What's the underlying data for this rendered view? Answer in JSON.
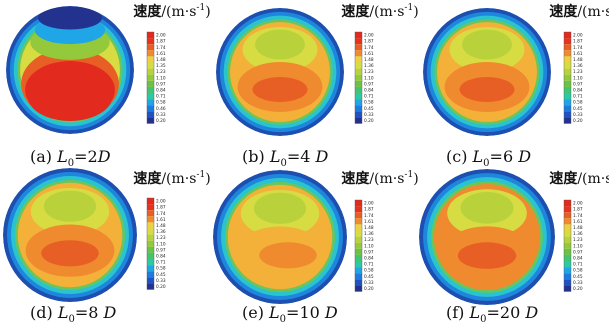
{
  "figure": {
    "unit_cn": "速度",
    "unit": "/(m·s",
    "unit_exp": "-1",
    "unit_close": ")"
  },
  "colors": {
    "scale": [
      "#24328f",
      "#1f52c2",
      "#1e7be0",
      "#1ea6e6",
      "#20c3d3",
      "#2cc9a6",
      "#45c46f",
      "#6bc245",
      "#93c93a",
      "#b9d23c",
      "#d8dc43",
      "#ecd242",
      "#f3b13a",
      "#f08a2e",
      "#e85f25",
      "#e63320",
      "#e22a1f"
    ],
    "outer_ring": [
      "#1d4fb0",
      "#1f86de",
      "#2ac4cf",
      "#6cc55a"
    ]
  },
  "chart_data": [
    {
      "type": "heatmap",
      "caption": "(a) L0=2D",
      "caption_parts": {
        "prefix": "(a) ",
        "var": "L",
        "sub": "0",
        "suffix": "=2",
        "unit": "D"
      },
      "colorbar_ticks": [
        "2.00",
        "1.87",
        "1.74",
        "1.61",
        "1.48",
        "1.35",
        "1.23",
        "1.10",
        "0.97",
        "0.84",
        "0.71",
        "0.58",
        "0.46",
        "0.33",
        "0.20"
      ],
      "peak_velocity_level": 2.0,
      "inner_level": 1.55
    },
    {
      "type": "heatmap",
      "caption": "(b) L0=4 D",
      "caption_parts": {
        "prefix": "(b) ",
        "var": "L",
        "sub": "0",
        "suffix": "=4 ",
        "unit": "D"
      },
      "colorbar_ticks": [
        "2.00",
        "1.87",
        "1.74",
        "1.61",
        "1.48",
        "1.36",
        "1.23",
        "1.10",
        "0.97",
        "0.84",
        "0.71",
        "0.58",
        "0.45",
        "0.33",
        "0.20"
      ],
      "peak_velocity_level": 1.82,
      "inner_level": 1.5
    },
    {
      "type": "heatmap",
      "caption": "(c) L0=6 D",
      "caption_parts": {
        "prefix": "(c) ",
        "var": "L",
        "sub": "0",
        "suffix": "=6 ",
        "unit": "D"
      },
      "colorbar_ticks": [
        "2.00",
        "1.87",
        "1.74",
        "1.61",
        "1.48",
        "1.36",
        "1.23",
        "1.10",
        "0.97",
        "0.84",
        "0.71",
        "0.58",
        "0.45",
        "0.33",
        "0.20"
      ],
      "peak_velocity_level": 1.75,
      "inner_level": 1.55
    },
    {
      "type": "heatmap",
      "caption": "(d) L0=8 D",
      "caption_parts": {
        "prefix": "(d) ",
        "var": "L",
        "sub": "0",
        "suffix": "=8 ",
        "unit": "D"
      },
      "colorbar_ticks": [
        "2.00",
        "1.87",
        "1.74",
        "1.61",
        "1.48",
        "1.36",
        "1.23",
        "1.10",
        "0.97",
        "0.84",
        "0.71",
        "0.58",
        "0.45",
        "0.33",
        "0.20"
      ],
      "peak_velocity_level": 1.82,
      "inner_level": 1.55
    },
    {
      "type": "heatmap",
      "caption": "(e) L0=10 D",
      "caption_parts": {
        "prefix": "(e) ",
        "var": "L",
        "sub": "0",
        "suffix": "=10 ",
        "unit": "D"
      },
      "colorbar_ticks": [
        "2.00",
        "1.87",
        "1.74",
        "1.61",
        "1.48",
        "1.36",
        "1.23",
        "1.10",
        "0.97",
        "0.84",
        "0.71",
        "0.58",
        "0.45",
        "0.33",
        "0.20"
      ],
      "peak_velocity_level": 1.65,
      "inner_level": 1.6
    },
    {
      "type": "heatmap",
      "caption": "(f) L0=20 D",
      "caption_parts": {
        "prefix": "(f) ",
        "var": "L",
        "sub": "0",
        "suffix": "=20 ",
        "unit": "D"
      },
      "colorbar_ticks": [
        "2.00",
        "1.87",
        "1.74",
        "1.61",
        "1.48",
        "1.36",
        "1.23",
        "1.10",
        "0.97",
        "0.84",
        "0.71",
        "0.58",
        "0.45",
        "0.33",
        "0.20"
      ],
      "peak_velocity_level": 1.82,
      "inner_level": 1.65
    }
  ]
}
